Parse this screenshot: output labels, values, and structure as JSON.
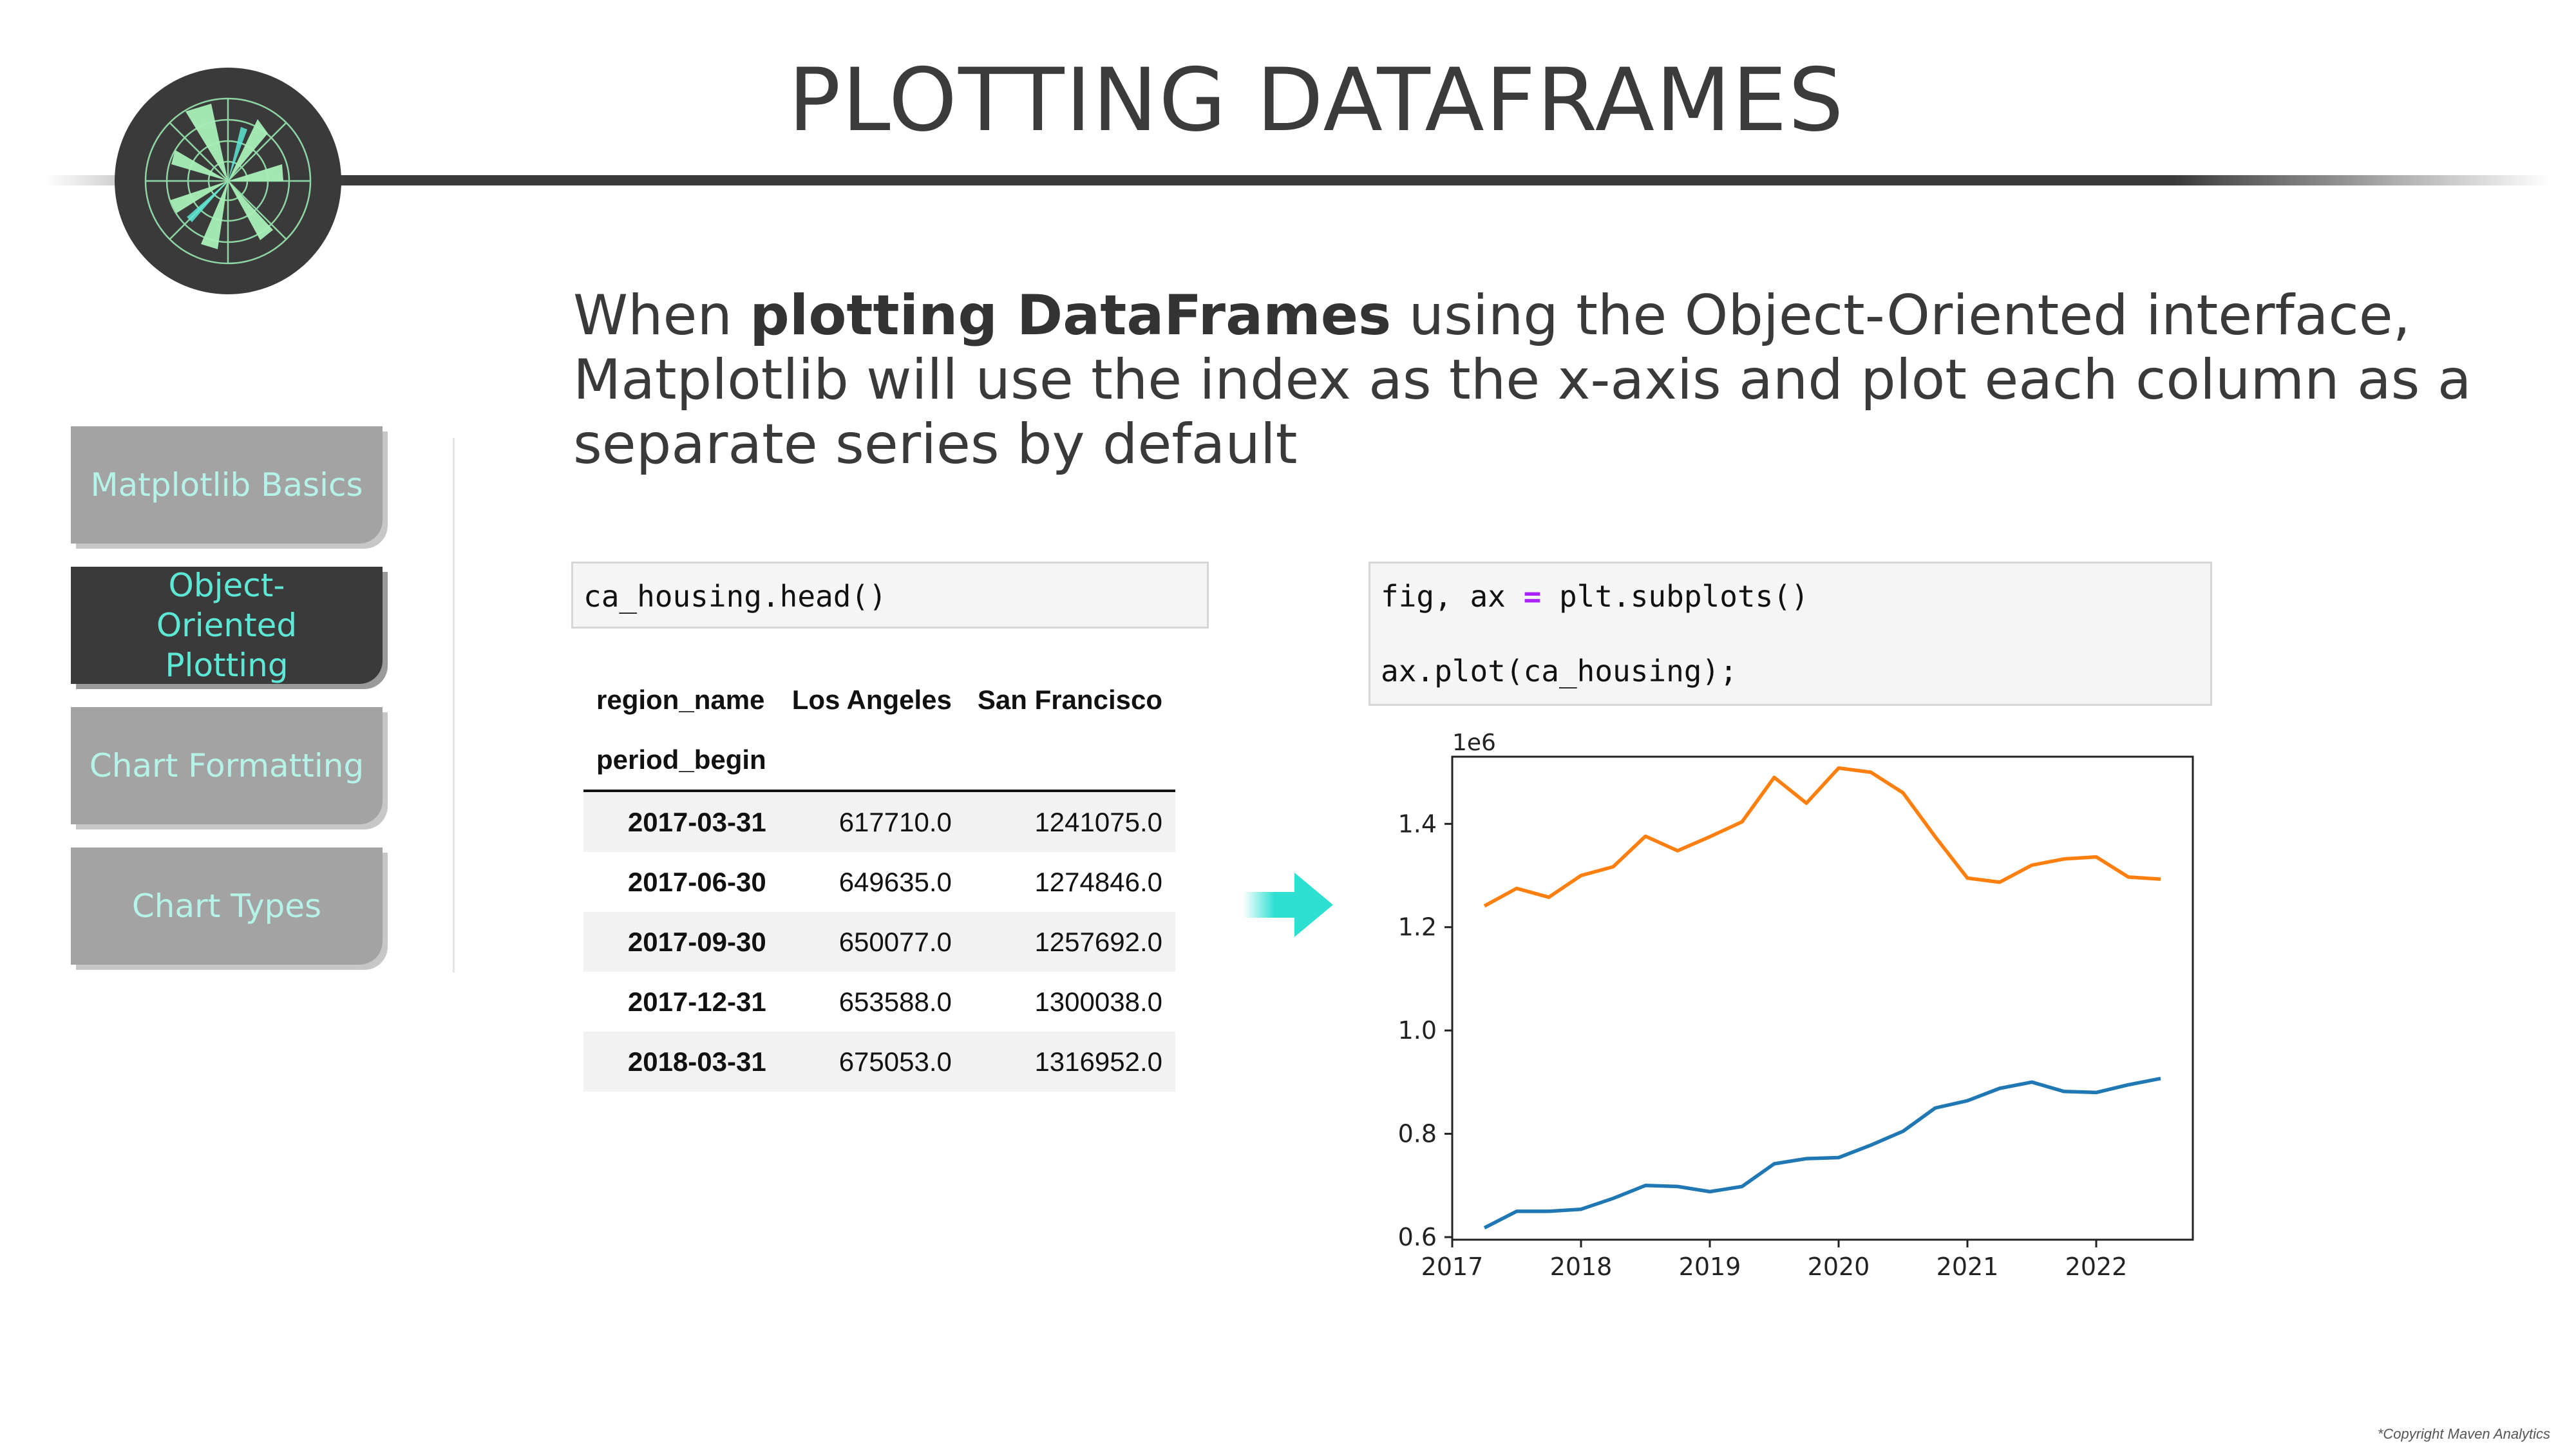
{
  "header": {
    "title": "PLOTTING DATAFRAMES"
  },
  "intro": {
    "part1": "When ",
    "bold": "plotting DataFrames",
    "part2": " using the Object-Oriented interface, Matplotlib will use the index as the x-axis and plot each column as a separate series by default"
  },
  "sidebar": {
    "items": [
      {
        "label": "Matplotlib Basics",
        "active": false
      },
      {
        "label": "Object-Oriented Plotting",
        "active": true
      },
      {
        "label": "Chart Formatting",
        "active": false
      },
      {
        "label": "Chart Types",
        "active": false
      }
    ]
  },
  "code_left": {
    "line1": "ca_housing.head()"
  },
  "code_right": {
    "line1_a": "fig, ax ",
    "line1_eq": "=",
    "line1_b": " plt.subplots()",
    "line2": "ax.plot(ca_housing);"
  },
  "table": {
    "columns_header": [
      "region_name",
      "Los Angeles",
      "San Francisco"
    ],
    "index_name": "period_begin",
    "rows": [
      {
        "index": "2017-03-31",
        "la": "617710.0",
        "sf": "1241075.0"
      },
      {
        "index": "2017-06-30",
        "la": "649635.0",
        "sf": "1274846.0"
      },
      {
        "index": "2017-09-30",
        "la": "650077.0",
        "sf": "1257692.0"
      },
      {
        "index": "2017-12-31",
        "la": "653588.0",
        "sf": "1300038.0"
      },
      {
        "index": "2018-03-31",
        "la": "675053.0",
        "sf": "1316952.0"
      }
    ]
  },
  "chart_data": {
    "type": "line",
    "offset_label": "1e6",
    "x_ticks": [
      "2017",
      "2018",
      "2019",
      "2020",
      "2021",
      "2022"
    ],
    "y_ticks": [
      "0.6",
      "0.8",
      "1.0",
      "1.2",
      "1.4"
    ],
    "xlim": [
      2017.0,
      2022.75
    ],
    "ylim": [
      0.595,
      1.53
    ],
    "x": [
      2017.25,
      2017.5,
      2017.75,
      2018.0,
      2018.25,
      2018.5,
      2018.75,
      2019.0,
      2019.25,
      2019.5,
      2019.75,
      2020.0,
      2020.25,
      2020.5,
      2020.75,
      2021.0,
      2021.25,
      2021.5,
      2021.75,
      2022.0,
      2022.25,
      2022.5
    ],
    "series": [
      {
        "color": "#1f77b4",
        "values": [
          0.618,
          0.65,
          0.65,
          0.654,
          0.675,
          0.7,
          0.698,
          0.688,
          0.698,
          0.742,
          0.752,
          0.754,
          0.778,
          0.805,
          0.85,
          0.864,
          0.888,
          0.9,
          0.882,
          0.88,
          0.895,
          0.907
        ]
      },
      {
        "color": "#ff7f0e",
        "values": [
          1.241,
          1.275,
          1.258,
          1.3,
          1.317,
          1.376,
          1.348,
          1.375,
          1.404,
          1.49,
          1.44,
          1.508,
          1.5,
          1.46,
          1.375,
          1.295,
          1.287,
          1.32,
          1.332,
          1.336,
          1.297,
          1.293
        ]
      }
    ]
  },
  "footer": {
    "copyright": "*Copyright Maven Analytics"
  }
}
